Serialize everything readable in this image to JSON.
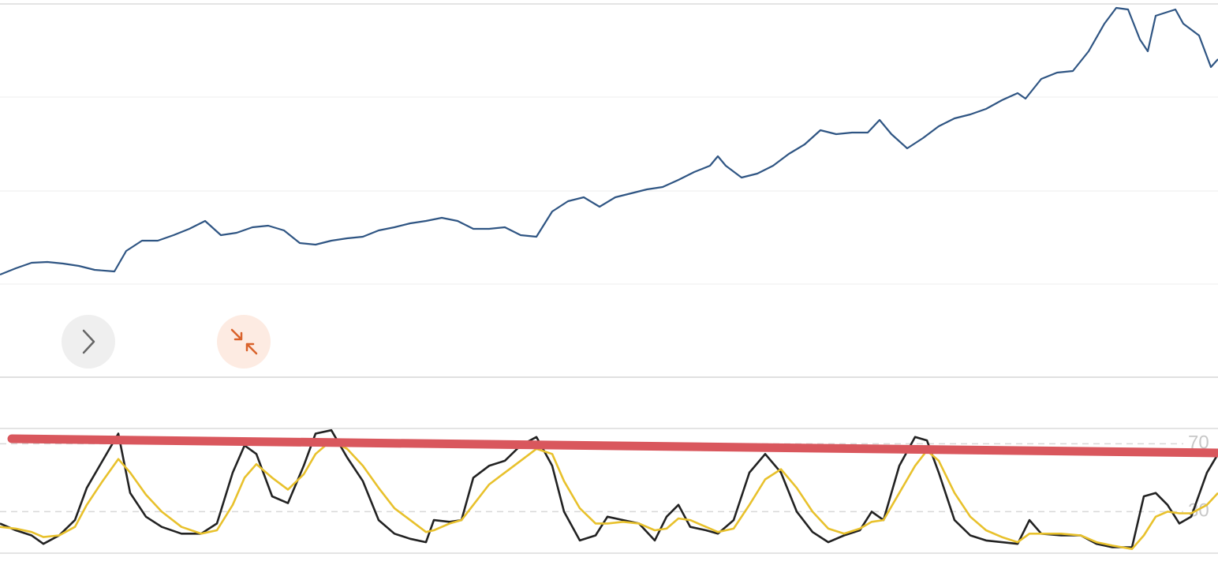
{
  "chart_data": [
    {
      "type": "line",
      "x": [
        0,
        20,
        40,
        60,
        80,
        100,
        120,
        145,
        160,
        180,
        200,
        220,
        240,
        260,
        280,
        300,
        320,
        340,
        360,
        380,
        400,
        420,
        440,
        460,
        480,
        500,
        520,
        540,
        560,
        580,
        600,
        620,
        640,
        660,
        680,
        700,
        720,
        740,
        760,
        780,
        800,
        820,
        840,
        860,
        880,
        900,
        910,
        920,
        940,
        960,
        980,
        1000,
        1020,
        1040,
        1060,
        1080,
        1100,
        1115,
        1130,
        1150,
        1170,
        1190,
        1210,
        1230,
        1250,
        1270,
        1290,
        1300,
        1320,
        1340,
        1360,
        1380,
        1400,
        1415,
        1430,
        1445,
        1455,
        1465,
        1490,
        1500,
        1520,
        1535,
        1544
      ],
      "series": [
        {
          "color": "#2f5583",
          "values": [
            12,
            20,
            27,
            28,
            26,
            23,
            18,
            16,
            42,
            55,
            55,
            62,
            70,
            80,
            62,
            65,
            72,
            74,
            68,
            52,
            50,
            55,
            58,
            60,
            68,
            72,
            77,
            80,
            84,
            80,
            70,
            70,
            72,
            62,
            60,
            92,
            105,
            110,
            98,
            110,
            115,
            120,
            123,
            132,
            142,
            150,
            162,
            150,
            135,
            140,
            150,
            165,
            177,
            195,
            190,
            192,
            192,
            208,
            190,
            172,
            185,
            200,
            210,
            215,
            222,
            233,
            242,
            235,
            260,
            268,
            270,
            295,
            330,
            350,
            348,
            310,
            295,
            340,
            348,
            330,
            315,
            275,
            285
          ]
        }
      ],
      "xlim": [
        0,
        1544
      ],
      "ylim": [
        0,
        355
      ]
    },
    {
      "type": "line",
      "x": [
        0,
        20,
        40,
        55,
        75,
        95,
        110,
        130,
        150,
        165,
        185,
        205,
        230,
        255,
        275,
        295,
        310,
        325,
        345,
        365,
        385,
        400,
        420,
        440,
        460,
        480,
        500,
        520,
        540,
        550,
        570,
        585,
        600,
        620,
        640,
        660,
        680,
        700,
        715,
        735,
        755,
        770,
        790,
        810,
        830,
        845,
        860,
        875,
        895,
        910,
        930,
        950,
        970,
        990,
        1010,
        1030,
        1050,
        1070,
        1090,
        1105,
        1120,
        1140,
        1160,
        1175,
        1190,
        1210,
        1230,
        1250,
        1270,
        1290,
        1305,
        1320,
        1345,
        1370,
        1390,
        1410,
        1435,
        1450,
        1465,
        1480,
        1495,
        1510,
        1530,
        1544
      ],
      "series": [
        {
          "color": "#222222",
          "values": [
            23,
            19,
            16,
            11,
            16,
            25,
            44,
            60,
            76,
            41,
            27,
            21,
            17,
            17,
            23,
            53,
            69,
            64,
            39,
            35,
            57,
            76,
            78,
            62,
            48,
            25,
            17,
            14,
            12,
            25,
            24,
            25,
            50,
            57,
            60,
            69,
            74,
            57,
            30,
            13,
            16,
            27,
            25,
            23,
            13,
            27,
            34,
            21,
            19,
            17,
            25,
            53,
            64,
            53,
            30,
            18,
            12,
            16,
            19,
            30,
            25,
            57,
            74,
            72,
            53,
            25,
            16,
            13,
            12,
            11,
            25,
            17,
            16,
            16,
            11,
            9,
            9,
            39,
            41,
            34,
            23,
            27,
            53,
            64
          ]
        },
        {
          "color": "#e8c12c",
          "values": [
            21,
            20,
            18,
            15,
            16,
            21,
            34,
            48,
            61,
            53,
            40,
            30,
            21,
            17,
            19,
            34,
            50,
            58,
            50,
            43,
            52,
            64,
            72,
            67,
            57,
            44,
            32,
            25,
            18,
            19,
            23,
            25,
            34,
            46,
            53,
            60,
            67,
            64,
            48,
            32,
            23,
            23,
            24,
            23,
            19,
            20,
            26,
            25,
            21,
            18,
            20,
            34,
            49,
            55,
            44,
            30,
            20,
            17,
            20,
            24,
            25,
            41,
            57,
            66,
            60,
            41,
            27,
            19,
            15,
            12,
            17,
            17,
            17,
            16,
            12,
            10,
            8,
            16,
            27,
            30,
            29,
            29,
            34,
            41
          ]
        }
      ],
      "xlim": [
        0,
        1544
      ],
      "ylim": [
        6,
        79
      ],
      "yticks": [
        70,
        30
      ]
    }
  ]
}
